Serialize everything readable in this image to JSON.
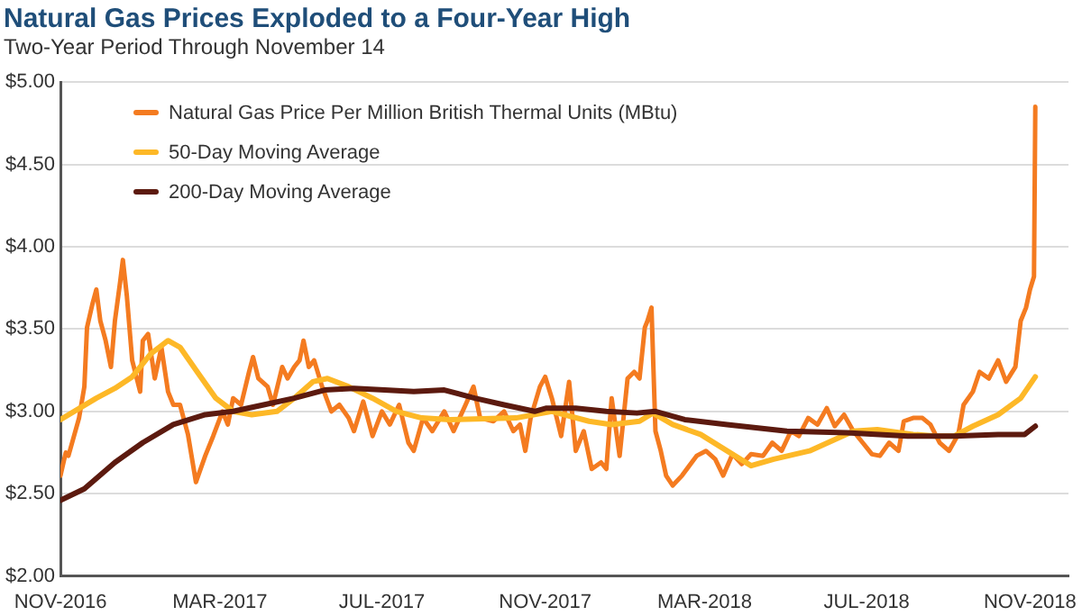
{
  "chart_data": {
    "type": "line",
    "title": "Natural Gas Prices Exploded to a Four-Year High",
    "subtitle": "Two-Year Period Through November 14",
    "series": [
      {
        "name": "Natural Gas Price Per Million British Thermal Units (MBtu)",
        "color": "#f47b20",
        "x": [
          "2016-11-01",
          "2016-11-05",
          "2016-11-07",
          "2016-11-15",
          "2016-11-19",
          "2016-11-21",
          "2016-11-25",
          "2016-11-28",
          "2016-12-01",
          "2016-12-05",
          "2016-12-09",
          "2016-12-12",
          "2016-12-16",
          "2016-12-18",
          "2016-12-21",
          "2016-12-25",
          "2016-12-31",
          "2017-01-02",
          "2017-01-06",
          "2017-01-11",
          "2017-01-16",
          "2017-01-21",
          "2017-01-25",
          "2017-01-30",
          "2017-02-05",
          "2017-02-11",
          "2017-02-18",
          "2017-02-24",
          "2017-03-03",
          "2017-03-07",
          "2017-03-11",
          "2017-03-17",
          "2017-03-23",
          "2017-03-26",
          "2017-03-30",
          "2017-04-06",
          "2017-04-10",
          "2017-04-17",
          "2017-04-21",
          "2017-04-26",
          "2017-04-30",
          "2017-05-03",
          "2017-05-07",
          "2017-05-11",
          "2017-05-17",
          "2017-05-24",
          "2017-05-30",
          "2017-06-06",
          "2017-06-10",
          "2017-06-17",
          "2017-06-24",
          "2017-07-01",
          "2017-07-07",
          "2017-07-14",
          "2017-07-21",
          "2017-07-25",
          "2017-08-01",
          "2017-08-08",
          "2017-08-17",
          "2017-08-24",
          "2017-09-02",
          "2017-09-08",
          "2017-09-13",
          "2017-09-23",
          "2017-10-01",
          "2017-10-08",
          "2017-10-13",
          "2017-10-17",
          "2017-10-21",
          "2017-10-28",
          "2017-11-01",
          "2017-11-06",
          "2017-11-13",
          "2017-11-19",
          "2017-11-24",
          "2017-11-30",
          "2017-12-06",
          "2017-12-13",
          "2017-12-17",
          "2017-12-21",
          "2017-12-27",
          "2018-01-02",
          "2018-01-07",
          "2018-01-11",
          "2018-01-15",
          "2018-01-17",
          "2018-01-20",
          "2018-01-23",
          "2018-01-27",
          "2018-01-31",
          "2018-02-05",
          "2018-02-12",
          "2018-02-23",
          "2018-03-02",
          "2018-03-09",
          "2018-03-15",
          "2018-03-22",
          "2018-03-29",
          "2018-04-05",
          "2018-04-14",
          "2018-04-21",
          "2018-04-28",
          "2018-05-05",
          "2018-05-11",
          "2018-05-18",
          "2018-05-25",
          "2018-06-01",
          "2018-06-07",
          "2018-06-14",
          "2018-06-21",
          "2018-06-28",
          "2018-07-05",
          "2018-07-11",
          "2018-07-18",
          "2018-07-25",
          "2018-07-29",
          "2018-08-05",
          "2018-08-12",
          "2018-08-18",
          "2018-08-25",
          "2018-09-01",
          "2018-09-08",
          "2018-09-12",
          "2018-09-19",
          "2018-09-24",
          "2018-10-01",
          "2018-10-08",
          "2018-10-14",
          "2018-10-21",
          "2018-10-25",
          "2018-10-29",
          "2018-11-01",
          "2018-11-04",
          "2018-11-05"
        ],
        "values": [
          2.61,
          2.75,
          2.73,
          2.96,
          3.15,
          3.51,
          3.65,
          3.74,
          3.55,
          3.43,
          3.27,
          3.55,
          3.79,
          3.92,
          3.7,
          3.31,
          3.12,
          3.43,
          3.47,
          3.2,
          3.39,
          3.12,
          3.04,
          3.04,
          2.86,
          2.57,
          2.73,
          2.85,
          3.0,
          2.92,
          3.08,
          3.04,
          3.24,
          3.33,
          3.2,
          3.15,
          3.04,
          3.27,
          3.2,
          3.27,
          3.31,
          3.43,
          3.27,
          3.31,
          3.15,
          3.0,
          3.04,
          2.96,
          2.88,
          3.06,
          2.85,
          3.0,
          2.92,
          3.04,
          2.81,
          2.76,
          2.96,
          2.88,
          3.0,
          2.88,
          3.04,
          3.15,
          2.96,
          2.94,
          3.0,
          2.88,
          2.92,
          2.76,
          2.96,
          3.15,
          3.21,
          3.08,
          2.85,
          3.18,
          2.76,
          2.88,
          2.65,
          2.69,
          2.65,
          3.08,
          2.73,
          3.2,
          3.24,
          3.2,
          3.51,
          3.55,
          3.63,
          2.88,
          2.76,
          2.61,
          2.55,
          2.61,
          2.73,
          2.76,
          2.71,
          2.61,
          2.74,
          2.68,
          2.74,
          2.73,
          2.81,
          2.76,
          2.88,
          2.85,
          2.96,
          2.92,
          3.02,
          2.91,
          2.98,
          2.88,
          2.81,
          2.74,
          2.73,
          2.81,
          2.76,
          2.94,
          2.96,
          2.96,
          2.92,
          2.81,
          2.76,
          2.86,
          3.04,
          3.12,
          3.24,
          3.2,
          3.31,
          3.18,
          3.27,
          3.55,
          3.63,
          3.74,
          3.82,
          4.85
        ]
      },
      {
        "name": "50-Day Moving Average",
        "color": "#fdb827",
        "x": [
          "2016-11-01",
          "2016-11-28",
          "2016-12-12",
          "2016-12-25",
          "2017-01-08",
          "2017-01-21",
          "2017-01-30",
          "2017-02-12",
          "2017-02-26",
          "2017-03-11",
          "2017-03-25",
          "2017-04-13",
          "2017-04-26",
          "2017-05-10",
          "2017-05-21",
          "2017-06-06",
          "2017-06-24",
          "2017-07-12",
          "2017-07-31",
          "2017-08-21",
          "2017-10-10",
          "2017-11-06",
          "2017-12-04",
          "2017-12-21",
          "2018-01-11",
          "2018-01-21",
          "2018-02-05",
          "2018-02-26",
          "2018-03-22",
          "2018-04-05",
          "2018-04-22",
          "2018-05-19",
          "2018-06-21",
          "2018-07-09",
          "2018-08-05",
          "2018-08-22",
          "2018-09-05",
          "2018-09-19",
          "2018-10-08",
          "2018-10-25",
          "2018-11-05"
        ],
        "values": [
          2.95,
          3.08,
          3.14,
          3.21,
          3.35,
          3.43,
          3.39,
          3.24,
          3.08,
          3.0,
          2.98,
          3.0,
          3.08,
          3.18,
          3.2,
          3.15,
          3.08,
          3.0,
          2.96,
          2.95,
          2.96,
          3.0,
          2.94,
          2.92,
          2.94,
          2.99,
          2.92,
          2.86,
          2.74,
          2.67,
          2.71,
          2.76,
          2.88,
          2.89,
          2.86,
          2.85,
          2.85,
          2.91,
          2.98,
          3.08,
          3.21
        ]
      },
      {
        "name": "200-Day Moving Average",
        "color": "#5c1a0f",
        "x": [
          "2016-11-01",
          "2016-11-19",
          "2016-12-12",
          "2017-01-02",
          "2017-01-25",
          "2017-02-18",
          "2017-03-11",
          "2017-04-03",
          "2017-04-26",
          "2017-05-19",
          "2017-06-10",
          "2017-07-03",
          "2017-07-25",
          "2017-08-17",
          "2017-09-09",
          "2017-10-01",
          "2017-10-24",
          "2017-11-02",
          "2017-11-24",
          "2017-12-17",
          "2018-01-09",
          "2018-01-23",
          "2018-02-14",
          "2018-03-18",
          "2018-05-02",
          "2018-06-16",
          "2018-08-01",
          "2018-09-05",
          "2018-10-08",
          "2018-10-28",
          "2018-11-05"
        ],
        "values": [
          2.46,
          2.53,
          2.69,
          2.81,
          2.92,
          2.98,
          3.0,
          3.04,
          3.08,
          3.13,
          3.14,
          3.13,
          3.12,
          3.13,
          3.08,
          3.04,
          3.0,
          3.02,
          3.02,
          3.0,
          2.99,
          3.0,
          2.95,
          2.92,
          2.88,
          2.87,
          2.85,
          2.85,
          2.86,
          2.86,
          2.91
        ]
      }
    ],
    "xlim": [
      "2016-11-01",
      "2018-11-30"
    ],
    "xticks": [
      {
        "value": "2016-11-01",
        "label": "NOV-2016"
      },
      {
        "value": "2017-03-01",
        "label": "MAR-2017"
      },
      {
        "value": "2017-07-01",
        "label": "JUL-2017"
      },
      {
        "value": "2017-11-01",
        "label": "NOV-2017"
      },
      {
        "value": "2018-03-01",
        "label": "MAR-2018"
      },
      {
        "value": "2018-07-01",
        "label": "JUL-2018"
      },
      {
        "value": "2018-11-01",
        "label": "NOV-2018"
      }
    ],
    "ylim": [
      2,
      5
    ],
    "yticks": [
      {
        "value": 2,
        "label": "$2.00"
      },
      {
        "value": 2.5,
        "label": "$2.50"
      },
      {
        "value": 3,
        "label": "$3.00"
      },
      {
        "value": 3.5,
        "label": "$3.50"
      },
      {
        "value": 4,
        "label": "$4.00"
      },
      {
        "value": 4.5,
        "label": "$4.50"
      },
      {
        "value": 5,
        "label": "$5.00"
      }
    ],
    "grid": "y",
    "legend": "top left",
    "marker": "none",
    "line_style": "solid"
  }
}
